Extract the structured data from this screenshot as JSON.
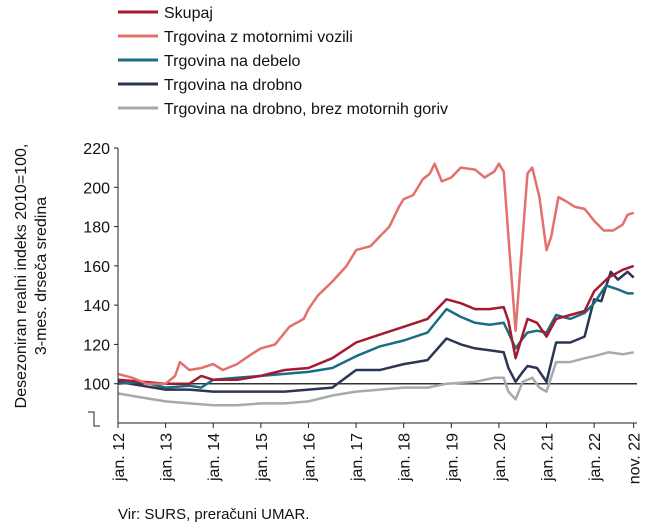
{
  "chart_data": {
    "type": "line",
    "title": "",
    "ylabel_line1": "Desezoniran realni indeks 2010=100,",
    "ylabel_line2": "3-mes. drseča sredina",
    "xlabel": "",
    "ylim": [
      80,
      220
    ],
    "yticks": [
      100,
      120,
      140,
      160,
      180,
      200,
      220
    ],
    "x_range": [
      2012.0,
      2022.9
    ],
    "xticks": [
      {
        "x": 2012.0,
        "label": "jan. 12"
      },
      {
        "x": 2013.0,
        "label": "jan. 13"
      },
      {
        "x": 2014.0,
        "label": "jan. 14"
      },
      {
        "x": 2015.0,
        "label": "jan. 15"
      },
      {
        "x": 2016.0,
        "label": "jan. 16"
      },
      {
        "x": 2017.0,
        "label": "jan. 17"
      },
      {
        "x": 2018.0,
        "label": "jan. 18"
      },
      {
        "x": 2019.0,
        "label": "jan. 19"
      },
      {
        "x": 2020.0,
        "label": "jan. 20"
      },
      {
        "x": 2021.0,
        "label": "jan. 21"
      },
      {
        "x": 2022.0,
        "label": "jan. 22"
      },
      {
        "x": 2022.83,
        "label": "nov. 22"
      }
    ],
    "reference_line": 100,
    "legend_position": "top-left",
    "series": [
      {
        "name": "Skupaj",
        "color": "#a6192e",
        "points": [
          [
            2012.0,
            102
          ],
          [
            2012.5,
            101
          ],
          [
            2013.0,
            100
          ],
          [
            2013.5,
            100
          ],
          [
            2013.75,
            104
          ],
          [
            2014.0,
            102
          ],
          [
            2014.5,
            102
          ],
          [
            2015.0,
            104
          ],
          [
            2015.5,
            107
          ],
          [
            2016.0,
            108
          ],
          [
            2016.5,
            113
          ],
          [
            2017.0,
            121
          ],
          [
            2017.5,
            125
          ],
          [
            2018.0,
            129
          ],
          [
            2018.5,
            133
          ],
          [
            2018.9,
            143
          ],
          [
            2019.2,
            141
          ],
          [
            2019.5,
            138
          ],
          [
            2019.8,
            138
          ],
          [
            2020.1,
            139
          ],
          [
            2020.2,
            132
          ],
          [
            2020.35,
            113
          ],
          [
            2020.5,
            125
          ],
          [
            2020.6,
            133
          ],
          [
            2020.8,
            131
          ],
          [
            2021.0,
            124
          ],
          [
            2021.2,
            133
          ],
          [
            2021.5,
            135
          ],
          [
            2021.8,
            137
          ],
          [
            2022.0,
            147
          ],
          [
            2022.3,
            154
          ],
          [
            2022.6,
            158
          ],
          [
            2022.83,
            160
          ]
        ]
      },
      {
        "name": "Trgovina z motornimi vozili",
        "color": "#e2706c",
        "points": [
          [
            2012.0,
            105
          ],
          [
            2012.3,
            103
          ],
          [
            2012.6,
            100
          ],
          [
            2013.0,
            100
          ],
          [
            2013.2,
            104
          ],
          [
            2013.3,
            111
          ],
          [
            2013.5,
            107
          ],
          [
            2013.75,
            108
          ],
          [
            2014.0,
            110
          ],
          [
            2014.2,
            107
          ],
          [
            2014.5,
            110
          ],
          [
            2014.8,
            115
          ],
          [
            2015.0,
            118
          ],
          [
            2015.3,
            120
          ],
          [
            2015.6,
            129
          ],
          [
            2015.9,
            133
          ],
          [
            2016.0,
            138
          ],
          [
            2016.2,
            145
          ],
          [
            2016.5,
            152
          ],
          [
            2016.8,
            160
          ],
          [
            2017.0,
            168
          ],
          [
            2017.3,
            170
          ],
          [
            2017.5,
            175
          ],
          [
            2017.7,
            180
          ],
          [
            2017.9,
            190
          ],
          [
            2018.0,
            194
          ],
          [
            2018.2,
            196
          ],
          [
            2018.4,
            204
          ],
          [
            2018.55,
            207
          ],
          [
            2018.65,
            212
          ],
          [
            2018.8,
            203
          ],
          [
            2019.0,
            205
          ],
          [
            2019.2,
            210
          ],
          [
            2019.5,
            209
          ],
          [
            2019.7,
            205
          ],
          [
            2019.9,
            208
          ],
          [
            2020.0,
            212
          ],
          [
            2020.1,
            208
          ],
          [
            2020.2,
            175
          ],
          [
            2020.35,
            127
          ],
          [
            2020.5,
            175
          ],
          [
            2020.6,
            207
          ],
          [
            2020.7,
            210
          ],
          [
            2020.85,
            195
          ],
          [
            2021.0,
            168
          ],
          [
            2021.1,
            175
          ],
          [
            2021.25,
            195
          ],
          [
            2021.4,
            193
          ],
          [
            2021.6,
            190
          ],
          [
            2021.8,
            189
          ],
          [
            2022.0,
            183
          ],
          [
            2022.2,
            178
          ],
          [
            2022.4,
            178
          ],
          [
            2022.6,
            181
          ],
          [
            2022.7,
            186
          ],
          [
            2022.83,
            187
          ]
        ]
      },
      {
        "name": "Trgovina na debelo",
        "color": "#1b6d84",
        "points": [
          [
            2012.0,
            100
          ],
          [
            2012.5,
            101
          ],
          [
            2013.0,
            98
          ],
          [
            2013.5,
            99
          ],
          [
            2013.75,
            98
          ],
          [
            2014.0,
            102
          ],
          [
            2014.5,
            103
          ],
          [
            2015.0,
            104
          ],
          [
            2015.5,
            105
          ],
          [
            2016.0,
            106
          ],
          [
            2016.5,
            108
          ],
          [
            2017.0,
            114
          ],
          [
            2017.5,
            119
          ],
          [
            2018.0,
            122
          ],
          [
            2018.5,
            126
          ],
          [
            2018.9,
            138
          ],
          [
            2019.2,
            134
          ],
          [
            2019.5,
            131
          ],
          [
            2019.8,
            130
          ],
          [
            2020.1,
            131
          ],
          [
            2020.2,
            126
          ],
          [
            2020.35,
            118
          ],
          [
            2020.5,
            123
          ],
          [
            2020.6,
            126
          ],
          [
            2020.8,
            127
          ],
          [
            2021.0,
            126
          ],
          [
            2021.2,
            135
          ],
          [
            2021.5,
            133
          ],
          [
            2021.8,
            136
          ],
          [
            2022.0,
            141
          ],
          [
            2022.25,
            150
          ],
          [
            2022.5,
            148
          ],
          [
            2022.7,
            146
          ],
          [
            2022.83,
            146
          ]
        ]
      },
      {
        "name": "Trgovina na drobno",
        "color": "#2c3555",
        "points": [
          [
            2012.0,
            101
          ],
          [
            2012.5,
            99
          ],
          [
            2013.0,
            97
          ],
          [
            2013.5,
            97
          ],
          [
            2014.0,
            96
          ],
          [
            2014.5,
            96
          ],
          [
            2015.0,
            96
          ],
          [
            2015.5,
            96
          ],
          [
            2016.0,
            97
          ],
          [
            2016.5,
            98
          ],
          [
            2017.0,
            107
          ],
          [
            2017.5,
            107
          ],
          [
            2018.0,
            110
          ],
          [
            2018.5,
            112
          ],
          [
            2018.9,
            123
          ],
          [
            2019.2,
            120
          ],
          [
            2019.5,
            118
          ],
          [
            2019.8,
            117
          ],
          [
            2020.1,
            116
          ],
          [
            2020.2,
            108
          ],
          [
            2020.35,
            101
          ],
          [
            2020.5,
            106
          ],
          [
            2020.6,
            109
          ],
          [
            2020.8,
            108
          ],
          [
            2021.0,
            101
          ],
          [
            2021.2,
            121
          ],
          [
            2021.5,
            121
          ],
          [
            2021.8,
            124
          ],
          [
            2022.0,
            143
          ],
          [
            2022.15,
            142
          ],
          [
            2022.35,
            157
          ],
          [
            2022.5,
            153
          ],
          [
            2022.7,
            157
          ],
          [
            2022.83,
            154
          ]
        ]
      },
      {
        "name": "Trgovina na drobno, brez motornih goriv",
        "color": "#a7a9ac",
        "points": [
          [
            2012.0,
            95
          ],
          [
            2012.5,
            93
          ],
          [
            2013.0,
            91
          ],
          [
            2013.5,
            90
          ],
          [
            2014.0,
            89
          ],
          [
            2014.5,
            89
          ],
          [
            2015.0,
            90
          ],
          [
            2015.5,
            90
          ],
          [
            2016.0,
            91
          ],
          [
            2016.5,
            94
          ],
          [
            2017.0,
            96
          ],
          [
            2017.5,
            97
          ],
          [
            2018.0,
            98
          ],
          [
            2018.5,
            98
          ],
          [
            2018.9,
            100
          ],
          [
            2019.5,
            101
          ],
          [
            2019.9,
            103
          ],
          [
            2020.1,
            103
          ],
          [
            2020.2,
            96
          ],
          [
            2020.35,
            92
          ],
          [
            2020.5,
            101
          ],
          [
            2020.7,
            103
          ],
          [
            2020.85,
            98
          ],
          [
            2021.0,
            96
          ],
          [
            2021.2,
            111
          ],
          [
            2021.5,
            111
          ],
          [
            2021.8,
            113
          ],
          [
            2022.0,
            114
          ],
          [
            2022.3,
            116
          ],
          [
            2022.6,
            115
          ],
          [
            2022.83,
            116
          ]
        ]
      }
    ]
  },
  "source": "Vir: SURS, preračuni UMAR."
}
